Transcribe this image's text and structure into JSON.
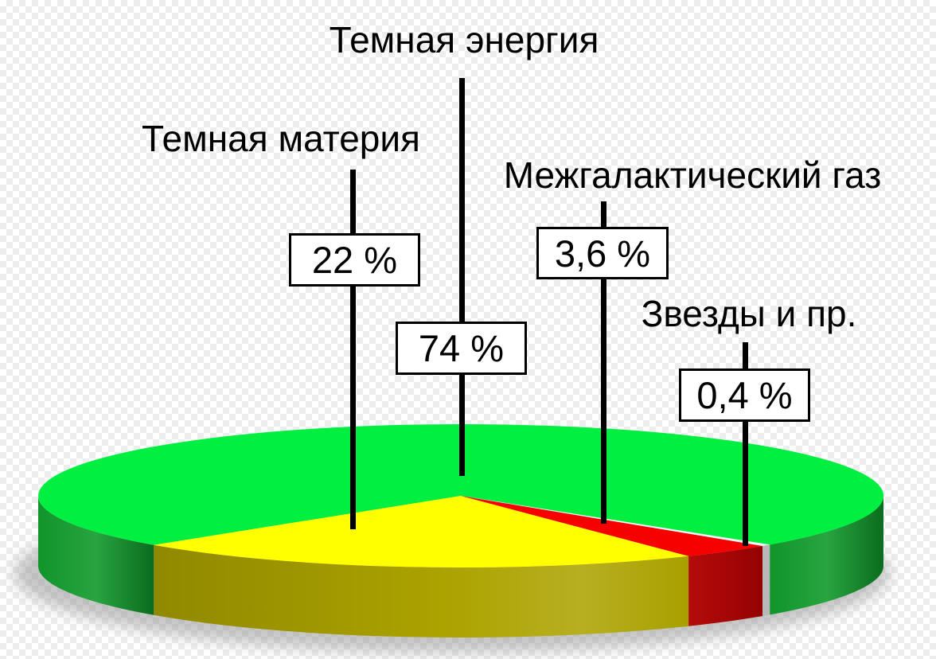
{
  "page": {
    "description": "3D pie chart of the composition of the Universe on a transparency checkerboard",
    "checker_light": "#ffffff",
    "checker_dark": "#ededed",
    "line_color": "#000000",
    "box_background": "#ffffff",
    "box_border": "#000000"
  },
  "chart_data": {
    "type": "pie",
    "style": "3d-exploded-none",
    "unit": "%",
    "legend_position": "callouts",
    "slices": [
      {
        "key": "dark-energy",
        "label": "Темная энергия",
        "value": 74,
        "value_text": "74 %",
        "color_top": "#00EF41",
        "color_side": "#109A2B"
      },
      {
        "key": "dark-matter",
        "label": "Темная материя",
        "value": 22,
        "value_text": "22 %",
        "color_top": "#FFFF00",
        "color_side": "#ACA300"
      },
      {
        "key": "intergalactic-gas",
        "label": "Межгалактический газ",
        "value": 3.6,
        "value_text": "3,6 %",
        "color_top": "#F70000",
        "color_side": "#B40303"
      },
      {
        "key": "stars-etc",
        "label": "Звезды и пр.",
        "value": 0.4,
        "value_text": "0,4 %",
        "color_top": "#F7F7F7",
        "color_side": "#C2C2C2"
      }
    ]
  }
}
